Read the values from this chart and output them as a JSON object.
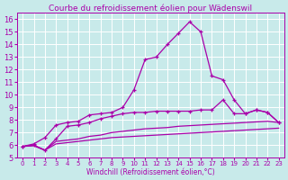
{
  "title": "Courbe du refroidissement éolien pour Wädenswil",
  "xlabel": "Windchill (Refroidissement éolien,°C)",
  "background_color": "#c8eaea",
  "grid_color": "#ffffff",
  "line_color": "#aa00aa",
  "x_values": [
    0,
    1,
    2,
    3,
    4,
    5,
    6,
    7,
    8,
    9,
    10,
    11,
    12,
    13,
    14,
    15,
    16,
    17,
    18,
    19,
    20,
    21,
    22,
    23
  ],
  "line1_y": [
    5.9,
    6.1,
    6.6,
    7.6,
    7.8,
    7.9,
    8.4,
    8.5,
    8.6,
    9.0,
    10.4,
    12.8,
    13.0,
    14.0,
    14.9,
    15.8,
    15.0,
    11.5,
    11.2,
    9.6,
    8.5,
    8.8,
    8.6,
    7.8
  ],
  "line2_y": [
    5.9,
    6.0,
    5.6,
    6.5,
    7.5,
    7.6,
    7.8,
    8.1,
    8.3,
    8.5,
    8.6,
    8.6,
    8.7,
    8.7,
    8.7,
    8.7,
    8.8,
    8.8,
    9.6,
    8.5,
    8.5,
    8.8,
    8.6,
    7.8
  ],
  "line3_y": [
    5.9,
    6.0,
    5.6,
    6.3,
    6.4,
    6.5,
    6.7,
    6.8,
    7.0,
    7.1,
    7.2,
    7.3,
    7.35,
    7.4,
    7.5,
    7.55,
    7.6,
    7.65,
    7.7,
    7.75,
    7.8,
    7.85,
    7.9,
    7.8
  ],
  "line4_y": [
    5.9,
    5.95,
    5.6,
    6.1,
    6.2,
    6.3,
    6.4,
    6.5,
    6.6,
    6.65,
    6.7,
    6.75,
    6.8,
    6.85,
    6.9,
    6.95,
    7.0,
    7.05,
    7.1,
    7.15,
    7.2,
    7.25,
    7.3,
    7.35
  ],
  "xlim": [
    -0.5,
    23.5
  ],
  "ylim": [
    5,
    16.5
  ],
  "yticks": [
    5,
    6,
    7,
    8,
    9,
    10,
    11,
    12,
    13,
    14,
    15,
    16
  ],
  "xticks": [
    0,
    1,
    2,
    3,
    4,
    5,
    6,
    7,
    8,
    9,
    10,
    11,
    12,
    13,
    14,
    15,
    16,
    17,
    18,
    19,
    20,
    21,
    22,
    23
  ],
  "title_fontsize": 6.5,
  "xlabel_fontsize": 5.5,
  "tick_fontsize_x": 5,
  "tick_fontsize_y": 6
}
